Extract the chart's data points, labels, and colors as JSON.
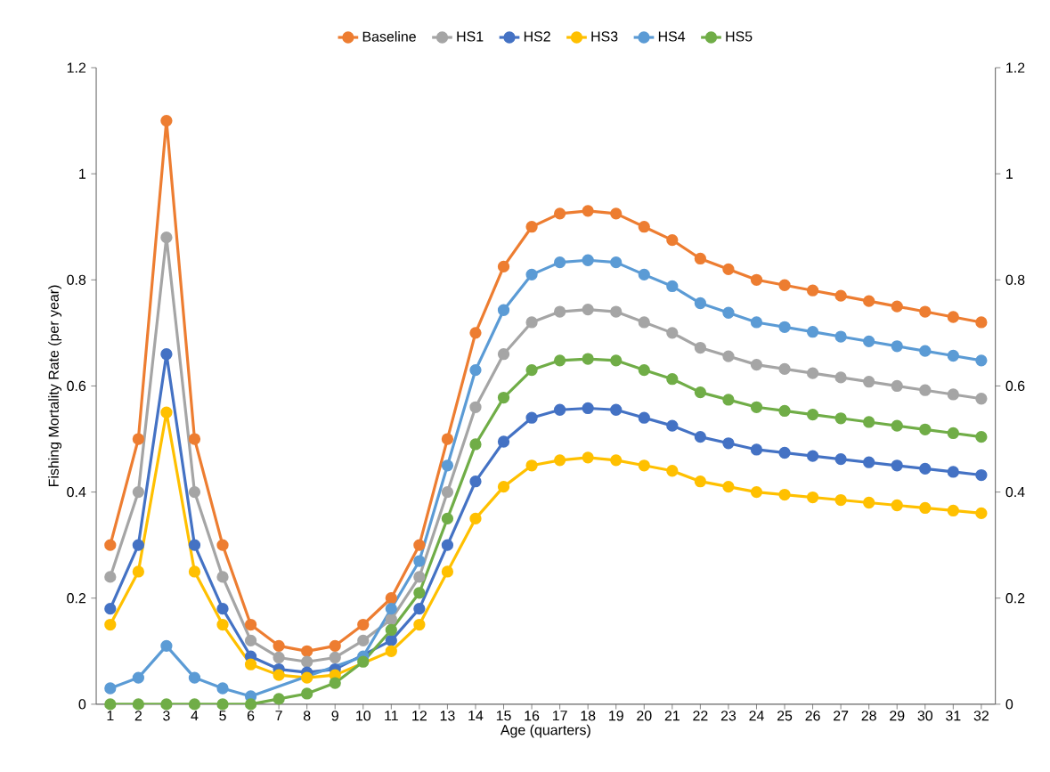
{
  "chart_data": {
    "type": "line",
    "xlabel": "Age (quarters)",
    "ylabel": "Fishing Mortality Rate (per year)",
    "categories": [
      "1",
      "2",
      "3",
      "4",
      "5",
      "6",
      "7",
      "8",
      "9",
      "10",
      "11",
      "12",
      "13",
      "14",
      "15",
      "16",
      "17",
      "18",
      "19",
      "20",
      "21",
      "22",
      "23",
      "24",
      "25",
      "26",
      "27",
      "28",
      "29",
      "30",
      "31",
      "32"
    ],
    "series": [
      {
        "name": "Baseline",
        "color": "#ed7d31",
        "values": [
          0.3,
          0.5,
          1.1,
          0.5,
          0.3,
          0.15,
          0.11,
          0.1,
          0.11,
          0.15,
          0.2,
          0.3,
          0.5,
          0.7,
          0.825,
          0.9,
          0.925,
          0.93,
          0.925,
          0.9,
          0.875,
          0.84,
          0.82,
          0.8,
          0.79,
          0.78,
          0.77,
          0.76,
          0.75,
          0.74,
          0.73,
          0.72
        ]
      },
      {
        "name": "HS1",
        "color": "#a5a5a5",
        "values": [
          0.24,
          0.4,
          0.88,
          0.4,
          0.24,
          0.12,
          0.088,
          0.08,
          0.088,
          0.12,
          0.16,
          0.24,
          0.4,
          0.56,
          0.66,
          0.72,
          0.74,
          0.744,
          0.74,
          0.72,
          0.7,
          0.672,
          0.656,
          0.64,
          0.632,
          0.624,
          0.616,
          0.608,
          0.6,
          0.592,
          0.584,
          0.576
        ]
      },
      {
        "name": "HS2",
        "color": "#4472c4",
        "values": [
          0.18,
          0.3,
          0.66,
          0.3,
          0.18,
          0.09,
          0.066,
          0.06,
          0.066,
          null,
          0.12,
          0.18,
          0.3,
          0.42,
          0.495,
          0.54,
          0.555,
          0.558,
          0.555,
          0.54,
          0.525,
          0.504,
          0.492,
          0.48,
          0.474,
          0.468,
          0.462,
          0.456,
          0.45,
          0.444,
          0.438,
          0.432
        ]
      },
      {
        "name": "HS3",
        "color": "#ffc000",
        "values": [
          0.15,
          0.25,
          0.55,
          0.25,
          0.15,
          0.075,
          0.055,
          0.05,
          0.055,
          null,
          0.1,
          0.15,
          0.25,
          0.35,
          0.41,
          0.45,
          0.46,
          0.465,
          0.46,
          0.45,
          0.44,
          0.42,
          0.41,
          0.4,
          0.395,
          0.39,
          0.385,
          0.38,
          0.375,
          0.37,
          0.365,
          0.36
        ]
      },
      {
        "name": "HS4",
        "color": "#5b9bd5",
        "values": [
          0.03,
          0.05,
          0.11,
          0.05,
          0.03,
          0.015,
          null,
          null,
          null,
          0.09,
          0.18,
          0.27,
          0.45,
          0.63,
          0.743,
          0.81,
          0.833,
          0.837,
          0.833,
          0.81,
          0.788,
          0.756,
          0.738,
          0.72,
          0.711,
          0.702,
          0.693,
          0.684,
          0.675,
          0.666,
          0.657,
          0.648
        ]
      },
      {
        "name": "HS5",
        "color": "#70ad47",
        "values": [
          0,
          0,
          0,
          0,
          0,
          0,
          0.01,
          0.02,
          0.04,
          0.08,
          0.14,
          0.21,
          0.35,
          0.49,
          0.578,
          0.63,
          0.648,
          0.651,
          0.648,
          0.63,
          0.613,
          0.588,
          0.574,
          0.56,
          0.553,
          0.546,
          0.539,
          0.532,
          0.525,
          0.518,
          0.511,
          0.504
        ]
      }
    ],
    "ylim": [
      0,
      1.2
    ],
    "yticks": [
      0,
      0.2,
      0.4,
      0.6,
      0.8,
      1,
      1.2
    ],
    "y2lim": [
      0,
      1.2
    ],
    "y2ticks": [
      0,
      0.2,
      0.4,
      0.6,
      0.8,
      1,
      1.2
    ],
    "grid": false,
    "legend": "top",
    "marker": "circle",
    "line_style": "solid"
  }
}
